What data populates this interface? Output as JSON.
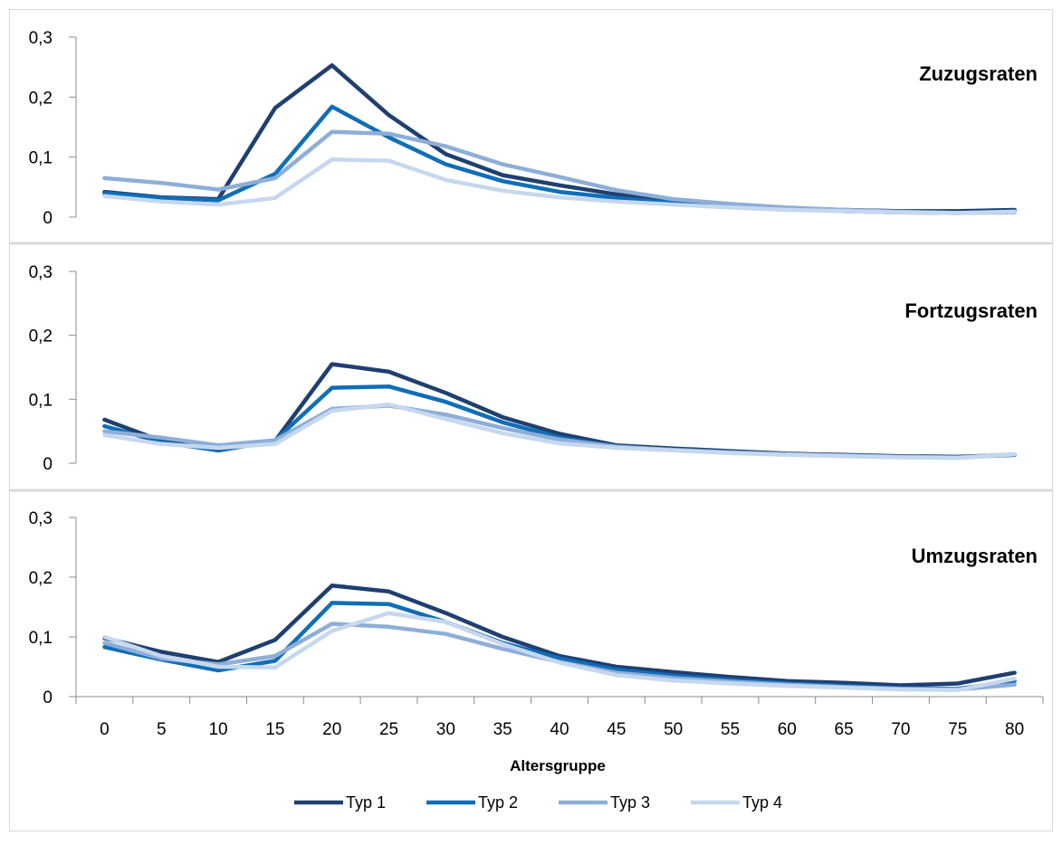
{
  "chart_data": {
    "type": "line",
    "xlabel": "Altersgruppe",
    "x": [
      "0",
      "5",
      "10",
      "15",
      "20",
      "25",
      "30",
      "35",
      "40",
      "45",
      "50",
      "55",
      "60",
      "65",
      "70",
      "75",
      "80"
    ],
    "ylim": [
      0,
      0.3
    ],
    "yticks": [
      "0",
      "0,1",
      "0,2",
      "0,3"
    ],
    "legend_position": "bottom",
    "colors": {
      "Typ 1": "#1f3f70",
      "Typ 2": "#0f6eb8",
      "Typ 3": "#8eaed8",
      "Typ 4": "#c6d8ee"
    },
    "legend": [
      "Typ 1",
      "Typ 2",
      "Typ 3",
      "Typ 4"
    ],
    "panels": [
      {
        "title": "Zuzugsraten",
        "series": [
          {
            "name": "Typ 1",
            "values": [
              0.042,
              0.033,
              0.03,
              0.182,
              0.253,
              0.17,
              0.105,
              0.07,
              0.053,
              0.038,
              0.026,
              0.02,
              0.015,
              0.012,
              0.01,
              0.01,
              0.012
            ]
          },
          {
            "name": "Typ 2",
            "values": [
              0.04,
              0.032,
              0.028,
              0.072,
              0.184,
              0.133,
              0.088,
              0.06,
              0.042,
              0.032,
              0.024,
              0.018,
              0.014,
              0.01,
              0.008,
              0.007,
              0.01
            ]
          },
          {
            "name": "Typ 3",
            "values": [
              0.065,
              0.057,
              0.046,
              0.065,
              0.142,
              0.139,
              0.118,
              0.088,
              0.067,
              0.045,
              0.03,
              0.022,
              0.016,
              0.012,
              0.009,
              0.007,
              0.008
            ]
          },
          {
            "name": "Typ 4",
            "values": [
              0.035,
              0.026,
              0.021,
              0.032,
              0.096,
              0.094,
              0.062,
              0.044,
              0.033,
              0.026,
              0.021,
              0.016,
              0.012,
              0.01,
              0.008,
              0.007,
              0.009
            ]
          }
        ]
      },
      {
        "title": "Fortzugsraten",
        "series": [
          {
            "name": "Typ 1",
            "values": [
              0.068,
              0.035,
              0.02,
              0.035,
              0.155,
              0.143,
              0.11,
              0.072,
              0.046,
              0.028,
              0.023,
              0.019,
              0.015,
              0.013,
              0.011,
              0.01,
              0.013
            ]
          },
          {
            "name": "Typ 2",
            "values": [
              0.058,
              0.033,
              0.02,
              0.036,
              0.118,
              0.12,
              0.096,
              0.064,
              0.04,
              0.026,
              0.021,
              0.017,
              0.014,
              0.012,
              0.01,
              0.009,
              0.013
            ]
          },
          {
            "name": "Typ 3",
            "values": [
              0.05,
              0.04,
              0.028,
              0.036,
              0.085,
              0.09,
              0.076,
              0.055,
              0.037,
              0.026,
              0.021,
              0.017,
              0.014,
              0.012,
              0.01,
              0.009,
              0.014
            ]
          },
          {
            "name": "Typ 4",
            "values": [
              0.044,
              0.03,
              0.024,
              0.03,
              0.082,
              0.092,
              0.069,
              0.047,
              0.031,
              0.024,
              0.02,
              0.016,
              0.013,
              0.011,
              0.009,
              0.008,
              0.014
            ]
          }
        ]
      },
      {
        "title": "Umzugsraten",
        "series": [
          {
            "name": "Typ 1",
            "values": [
              0.098,
              0.075,
              0.058,
              0.095,
              0.186,
              0.176,
              0.14,
              0.1,
              0.068,
              0.05,
              0.041,
              0.033,
              0.026,
              0.023,
              0.019,
              0.022,
              0.04
            ]
          },
          {
            "name": "Typ 2",
            "values": [
              0.083,
              0.062,
              0.044,
              0.06,
              0.157,
              0.155,
              0.125,
              0.09,
              0.064,
              0.045,
              0.035,
              0.028,
              0.022,
              0.018,
              0.014,
              0.013,
              0.026
            ]
          },
          {
            "name": "Typ 3",
            "values": [
              0.09,
              0.064,
              0.054,
              0.068,
              0.122,
              0.117,
              0.105,
              0.08,
              0.058,
              0.04,
              0.031,
              0.025,
              0.02,
              0.016,
              0.013,
              0.012,
              0.02
            ]
          },
          {
            "name": "Typ 4",
            "values": [
              0.1,
              0.068,
              0.05,
              0.049,
              0.11,
              0.14,
              0.125,
              0.088,
              0.057,
              0.036,
              0.027,
              0.022,
              0.018,
              0.015,
              0.012,
              0.011,
              0.03
            ]
          }
        ]
      }
    ]
  }
}
